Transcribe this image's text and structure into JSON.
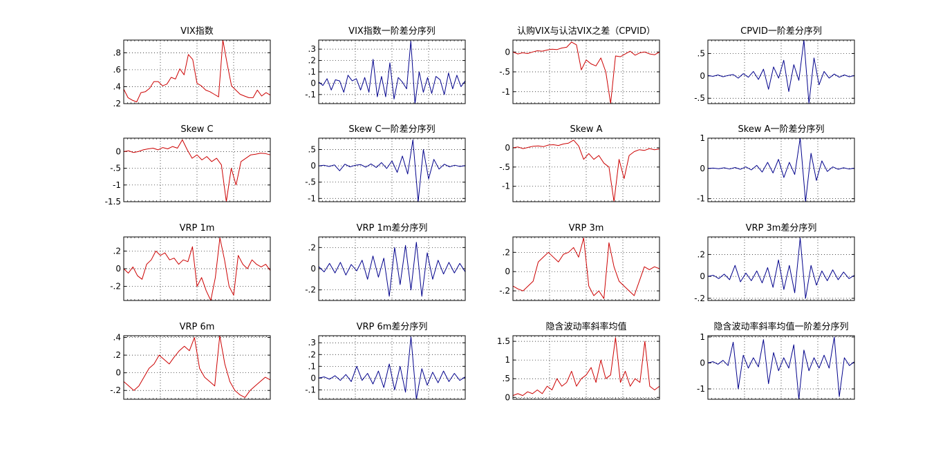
{
  "colors": {
    "red_series": "#cc0000",
    "blue_series": "#00008b",
    "axis": "#000000",
    "grid": "#000000",
    "background": "#ffffff"
  },
  "chart_data": [
    {
      "type": "line",
      "title": "VIX指数",
      "color": "red",
      "ylim": [
        0.2,
        0.95
      ],
      "yticks": [
        0.2,
        0.4,
        0.6,
        0.8
      ],
      "grid": true,
      "y": [
        0.37,
        0.27,
        0.24,
        0.22,
        0.33,
        0.34,
        0.38,
        0.46,
        0.46,
        0.41,
        0.43,
        0.51,
        0.49,
        0.61,
        0.54,
        0.78,
        0.72,
        0.44,
        0.41,
        0.36,
        0.34,
        0.31,
        0.28,
        0.95,
        0.67,
        0.41,
        0.36,
        0.31,
        0.29,
        0.27,
        0.27,
        0.36,
        0.29,
        0.33,
        0.3
      ]
    },
    {
      "type": "line",
      "title": "VIX指数一阶差分序列",
      "color": "blue",
      "ylim": [
        -0.18,
        0.38
      ],
      "yticks": [
        -0.1,
        0,
        0.1,
        0.2,
        0.3
      ],
      "grid": true,
      "y": [
        0.01,
        -0.02,
        0.04,
        -0.06,
        0.03,
        0.02,
        -0.08,
        0.07,
        0.02,
        0.04,
        -0.06,
        0.05,
        -0.08,
        0.21,
        -0.12,
        0.06,
        -0.12,
        0.18,
        -0.14,
        0.05,
        0.01,
        -0.05,
        0.37,
        -0.18,
        0.1,
        -0.08,
        0.05,
        -0.09,
        0.06,
        0.03,
        -0.1,
        0.09,
        -0.05,
        0.07,
        -0.03,
        0.02
      ]
    },
    {
      "type": "line",
      "title": "认购VIX与认沽VIX之差（CPVID）",
      "color": "red",
      "ylim": [
        -1.3,
        0.3
      ],
      "yticks": [
        -1,
        -0.5,
        0
      ],
      "grid": true,
      "y": [
        0,
        -0.05,
        -0.02,
        -0.04,
        0,
        0.03,
        0.02,
        0.05,
        0.07,
        0.06,
        0.1,
        0.12,
        0.25,
        0.18,
        -0.45,
        -0.2,
        -0.3,
        -0.35,
        -0.15,
        -0.5,
        -1.3,
        -0.1,
        -0.12,
        -0.05,
        0.02,
        -0.08,
        -0.02,
        0,
        -0.05,
        -0.07,
        0
      ]
    },
    {
      "type": "line",
      "title": "CPVID一阶差分序列",
      "color": "blue",
      "ylim": [
        -0.62,
        0.8
      ],
      "yticks": [
        -0.5,
        0,
        0.5
      ],
      "grid": true,
      "y": [
        0.01,
        -0.01,
        0.02,
        -0.02,
        0.01,
        0.03,
        -0.05,
        0.05,
        -0.03,
        0.1,
        -0.08,
        0.15,
        -0.3,
        0.2,
        -0.05,
        0.35,
        -0.35,
        0.25,
        -0.1,
        0.8,
        -0.62,
        0.4,
        -0.2,
        0.1,
        -0.05,
        0.04,
        -0.03,
        0.02,
        -0.02,
        0.01
      ]
    },
    {
      "type": "line",
      "title": "Skew C",
      "color": "red",
      "ylim": [
        -1.5,
        0.4
      ],
      "yticks": [
        -1.5,
        -1,
        -0.5,
        0
      ],
      "grid": true,
      "y": [
        0,
        0.02,
        -0.03,
        0,
        0.05,
        0.08,
        0.1,
        0.05,
        0.12,
        0.08,
        0.15,
        0.1,
        0.35,
        0.05,
        -0.2,
        -0.1,
        -0.25,
        -0.15,
        -0.3,
        -0.2,
        -0.4,
        -1.5,
        -0.5,
        -1,
        -0.3,
        -0.2,
        -0.1,
        -0.08,
        -0.05,
        -0.06,
        -0.1
      ]
    },
    {
      "type": "line",
      "title": "Skew C一阶差分序列",
      "color": "blue",
      "ylim": [
        -1.1,
        0.85
      ],
      "yticks": [
        -1,
        -0.5,
        0,
        0.5
      ],
      "grid": true,
      "y": [
        0,
        0.02,
        -0.02,
        0.03,
        -0.15,
        0.05,
        -0.03,
        0.02,
        0.04,
        -0.04,
        0.06,
        -0.05,
        0.1,
        -0.08,
        0.15,
        -0.2,
        0.3,
        -0.25,
        0.8,
        -1.1,
        0.5,
        -0.4,
        0.2,
        -0.1,
        0.05,
        -0.03,
        0.02,
        -0.02,
        0.01
      ]
    },
    {
      "type": "line",
      "title": "Skew A",
      "color": "red",
      "ylim": [
        -1.4,
        0.25
      ],
      "yticks": [
        -1,
        -0.5,
        0
      ],
      "grid": true,
      "y": [
        0,
        0.02,
        -0.02,
        0.01,
        0.04,
        0.05,
        0.03,
        0.07,
        0.08,
        0.06,
        0.1,
        0.12,
        0.2,
        0.05,
        -0.3,
        -0.15,
        -0.3,
        -0.2,
        -0.4,
        -0.5,
        -1.4,
        -0.3,
        -0.8,
        -0.2,
        -0.1,
        -0.05,
        -0.07,
        -0.02,
        -0.05,
        -0.03
      ]
    },
    {
      "type": "line",
      "title": "Skew A一阶差分序列",
      "color": "blue",
      "ylim": [
        -1.1,
        1.0
      ],
      "yticks": [
        -1,
        0,
        1
      ],
      "grid": true,
      "y": [
        0,
        0.01,
        -0.01,
        0.02,
        -0.02,
        0.03,
        -0.03,
        0.05,
        -0.05,
        0.1,
        -0.12,
        0.2,
        -0.15,
        0.3,
        -0.3,
        0.2,
        -0.2,
        1.0,
        -1.1,
        0.5,
        -0.4,
        0.25,
        -0.1,
        0.05,
        -0.03,
        0.02,
        -0.02,
        0.01
      ]
    },
    {
      "type": "line",
      "title": "VRP 1m",
      "color": "red",
      "ylim": [
        -0.36,
        0.36
      ],
      "yticks": [
        -0.2,
        0,
        0.2
      ],
      "grid": true,
      "y": [
        0,
        -0.05,
        0.02,
        -0.08,
        -0.12,
        0.05,
        0.1,
        0.2,
        0.15,
        0.18,
        0.1,
        0.12,
        0.05,
        0.1,
        0.08,
        0.25,
        -0.2,
        -0.1,
        -0.25,
        -0.36,
        -0.1,
        0.35,
        0.1,
        -0.2,
        -0.3,
        0.15,
        0.05,
        0,
        0.1,
        0.05,
        0.02,
        0.05,
        -0.02
      ]
    },
    {
      "type": "line",
      "title": "VRP 1m差分序列",
      "color": "blue",
      "ylim": [
        -0.3,
        0.3
      ],
      "yticks": [
        -0.2,
        0,
        0.2
      ],
      "grid": true,
      "y": [
        0.02,
        -0.03,
        0.05,
        -0.04,
        0.06,
        -0.06,
        0.04,
        -0.02,
        0.08,
        -0.1,
        0.12,
        -0.08,
        0.1,
        -0.26,
        0.2,
        -0.15,
        0.22,
        -0.2,
        0.25,
        -0.26,
        0.15,
        -0.1,
        0.08,
        -0.05,
        0.06,
        -0.04,
        0.05,
        -0.03
      ]
    },
    {
      "type": "line",
      "title": "VRP 3m",
      "color": "red",
      "ylim": [
        -0.3,
        0.36
      ],
      "yticks": [
        -0.2,
        0,
        0.2
      ],
      "grid": true,
      "y": [
        -0.15,
        -0.18,
        -0.2,
        -0.15,
        -0.1,
        0.1,
        0.15,
        0.2,
        0.15,
        0.1,
        0.18,
        0.2,
        0.25,
        0.15,
        0.35,
        -0.15,
        -0.25,
        -0.2,
        -0.28,
        0.3,
        0.05,
        -0.1,
        -0.15,
        -0.2,
        -0.25,
        -0.1,
        0.05,
        0.02,
        0.05,
        0.03
      ]
    },
    {
      "type": "line",
      "title": "VRP 3m差分序列",
      "color": "blue",
      "ylim": [
        -0.22,
        0.36
      ],
      "yticks": [
        -0.2,
        0,
        0.2
      ],
      "grid": true,
      "y": [
        0,
        0.01,
        -0.02,
        0.02,
        -0.03,
        0.1,
        -0.05,
        0.03,
        -0.04,
        0.05,
        -0.06,
        0.08,
        -0.1,
        0.15,
        -0.12,
        0.1,
        -0.15,
        0.35,
        -0.2,
        0.1,
        -0.08,
        0.05,
        -0.04,
        0.06,
        -0.03,
        0.04,
        -0.02,
        0.01
      ]
    },
    {
      "type": "line",
      "title": "VRP 6m",
      "color": "red",
      "ylim": [
        -0.3,
        0.42
      ],
      "yticks": [
        -0.2,
        0,
        0.2,
        0.4
      ],
      "grid": true,
      "y": [
        -0.1,
        -0.15,
        -0.2,
        -0.15,
        -0.05,
        0.05,
        0.1,
        0.2,
        0.15,
        0.1,
        0.18,
        0.25,
        0.3,
        0.25,
        0.4,
        0.05,
        -0.05,
        -0.1,
        -0.15,
        0.42,
        0.1,
        -0.1,
        -0.2,
        -0.25,
        -0.28,
        -0.2,
        -0.15,
        -0.1,
        -0.05,
        -0.08
      ]
    },
    {
      "type": "line",
      "title": "VRP 6m差分序列",
      "color": "blue",
      "ylim": [
        -0.18,
        0.36
      ],
      "yticks": [
        -0.1,
        0,
        0.1,
        0.2,
        0.3
      ],
      "grid": true,
      "y": [
        0,
        0.01,
        -0.01,
        0.02,
        -0.02,
        0.03,
        -0.03,
        0.1,
        -0.02,
        0.04,
        -0.05,
        0.06,
        -0.08,
        0.12,
        -0.1,
        0.1,
        -0.12,
        0.35,
        -0.18,
        0.08,
        -0.06,
        0.05,
        -0.04,
        0.06,
        -0.03,
        0.04,
        -0.02,
        0.01
      ]
    },
    {
      "type": "line",
      "title": "隐含波动率斜率均值",
      "color": "red",
      "ylim": [
        -0.05,
        1.65
      ],
      "yticks": [
        0,
        0.5,
        1,
        1.5
      ],
      "grid": true,
      "y": [
        0.05,
        0.1,
        0.05,
        0.15,
        0.1,
        0.2,
        0.1,
        0.3,
        0.2,
        0.5,
        0.3,
        0.4,
        0.7,
        0.3,
        0.5,
        0.6,
        0.8,
        0.4,
        1.0,
        0.5,
        0.6,
        1.6,
        0.4,
        0.7,
        0.3,
        0.5,
        0.4,
        1.5,
        0.3,
        0.2,
        0.3
      ]
    },
    {
      "type": "line",
      "title": "隐含波动率斜率均值一阶差分序列",
      "color": "blue",
      "ylim": [
        -1.4,
        1.05
      ],
      "yticks": [
        -1,
        0,
        1
      ],
      "grid": true,
      "y": [
        0,
        0.05,
        -0.05,
        0.1,
        -0.1,
        0.8,
        -1.0,
        0.3,
        -0.2,
        0.2,
        -0.15,
        0.9,
        -0.8,
        0.4,
        -0.3,
        0.2,
        -0.2,
        0.7,
        -1.4,
        0.5,
        -0.3,
        0.2,
        -0.2,
        0.3,
        -0.2,
        1.0,
        -1.3,
        0.2,
        -0.1,
        0.05
      ]
    }
  ]
}
